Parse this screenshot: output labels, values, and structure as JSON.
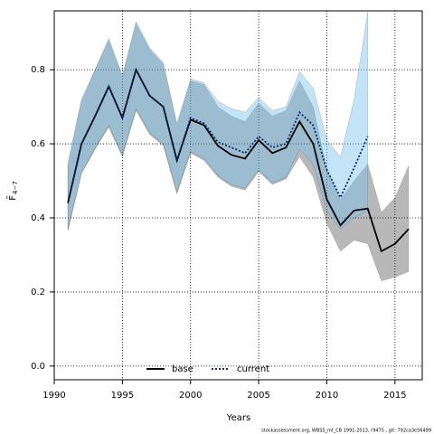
{
  "chart_data": {
    "type": "line",
    "xlabel": "Years",
    "ylabel": "F̄",
    "ylabel_sub": "4−7",
    "footer": "stockassessment.org, WBSS_mf_CB 1991-2013, r9475 , git: 792ca3e56499",
    "xlim": [
      1990,
      2017
    ],
    "ylim": [
      -0.037,
      0.959
    ],
    "xticks": [
      1990,
      1995,
      2000,
      2005,
      2010,
      2015
    ],
    "yticks": [
      {
        "value": 0,
        "label": "0.0"
      },
      {
        "value": 0.2,
        "label": "0.2"
      },
      {
        "value": 0.4,
        "label": "0.4"
      },
      {
        "value": 0.6,
        "label": "0.6"
      },
      {
        "value": 0.8,
        "label": "0.8"
      }
    ],
    "grid": true,
    "legend": "bottom",
    "series": [
      {
        "name": "base",
        "color": "#000000",
        "band_color": "rgba(0,0,0,0.28)",
        "x": [
          1991,
          1992,
          1993,
          1994,
          1995,
          1996,
          1997,
          1998,
          1999,
          2000,
          2001,
          2002,
          2003,
          2004,
          2005,
          2006,
          2007,
          2008,
          2009,
          2010,
          2011,
          2012,
          2013,
          2014,
          2015,
          2016
        ],
        "values": [
          0.44,
          0.6,
          0.675,
          0.755,
          0.67,
          0.8,
          0.73,
          0.7,
          0.555,
          0.665,
          0.65,
          0.595,
          0.57,
          0.56,
          0.61,
          0.575,
          0.59,
          0.66,
          0.6,
          0.45,
          0.38,
          0.42,
          0.425,
          0.31,
          0.33,
          0.37
        ],
        "upper": [
          0.54,
          0.715,
          0.8,
          0.88,
          0.78,
          0.925,
          0.855,
          0.815,
          0.65,
          0.77,
          0.76,
          0.7,
          0.675,
          0.66,
          0.71,
          0.675,
          0.69,
          0.77,
          0.7,
          0.53,
          0.45,
          0.5,
          0.545,
          0.415,
          0.455,
          0.54
        ],
        "lower": [
          0.365,
          0.52,
          0.585,
          0.645,
          0.565,
          0.69,
          0.625,
          0.595,
          0.465,
          0.575,
          0.555,
          0.51,
          0.485,
          0.475,
          0.525,
          0.49,
          0.505,
          0.565,
          0.51,
          0.385,
          0.31,
          0.34,
          0.33,
          0.23,
          0.24,
          0.255
        ]
      },
      {
        "name": "current",
        "color": "#0a2a6a",
        "band_color": "rgba(120,195,235,0.45)",
        "dashed": true,
        "x": [
          1991,
          1992,
          1993,
          1994,
          1995,
          1996,
          1997,
          1998,
          1999,
          2000,
          2001,
          2002,
          2003,
          2004,
          2005,
          2006,
          2007,
          2008,
          2009,
          2010,
          2011,
          2012,
          2013
        ],
        "values": [
          0.44,
          0.6,
          0.675,
          0.755,
          0.67,
          0.8,
          0.73,
          0.7,
          0.555,
          0.67,
          0.655,
          0.605,
          0.59,
          0.575,
          0.62,
          0.59,
          0.6,
          0.685,
          0.65,
          0.53,
          0.455,
          0.535,
          0.62
        ],
        "upper": [
          0.55,
          0.72,
          0.8,
          0.885,
          0.785,
          0.93,
          0.86,
          0.82,
          0.655,
          0.775,
          0.765,
          0.715,
          0.695,
          0.685,
          0.725,
          0.69,
          0.7,
          0.795,
          0.75,
          0.61,
          0.565,
          0.72,
          0.955
        ],
        "lower": [
          0.37,
          0.52,
          0.59,
          0.65,
          0.57,
          0.695,
          0.63,
          0.6,
          0.47,
          0.58,
          0.56,
          0.515,
          0.49,
          0.48,
          0.53,
          0.495,
          0.51,
          0.585,
          0.545,
          0.42,
          0.37,
          0.4,
          0.42
        ]
      }
    ]
  }
}
